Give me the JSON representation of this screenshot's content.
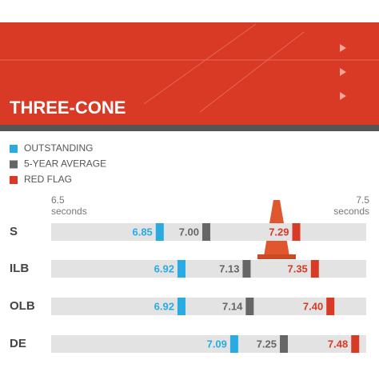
{
  "chart_data": {
    "type": "marker",
    "title": "THREE-CONE",
    "x_unit": "seconds",
    "xlim": [
      6.5,
      7.5
    ],
    "xticks": [
      6.5,
      7.5
    ],
    "categories": [
      "S",
      "ILB",
      "OLB",
      "DE"
    ],
    "series": [
      {
        "name": "OUTSTANDING",
        "color": "#29abe2",
        "values": [
          6.85,
          6.92,
          6.92,
          7.09
        ],
        "value_labels": [
          "6.85",
          "6.92",
          "6.92",
          "7.09"
        ]
      },
      {
        "name": "5-YEAR AVERAGE",
        "color": "#666666",
        "values": [
          7.0,
          7.13,
          7.14,
          7.25
        ],
        "value_labels": [
          "7.00",
          "7.13",
          "7.14",
          "7.25"
        ]
      },
      {
        "name": "RED FLAG",
        "color": "#d93a26",
        "values": [
          7.29,
          7.35,
          7.4,
          7.48
        ],
        "value_labels": [
          "7.29",
          "7.35",
          "7.40",
          "7.48"
        ]
      }
    ]
  }
}
